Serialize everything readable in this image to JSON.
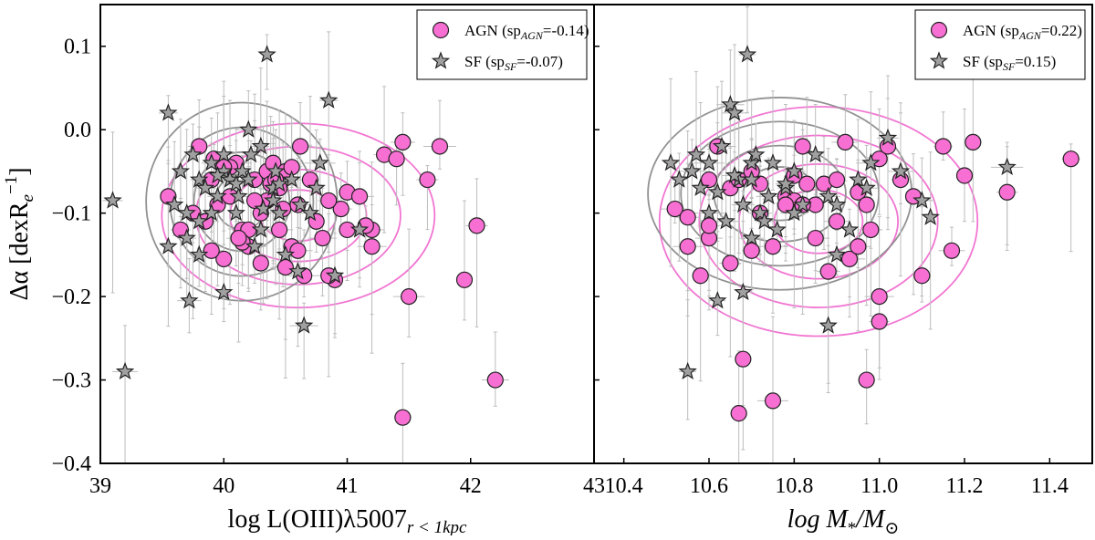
{
  "chart_data": [
    {
      "type": "scatter",
      "xlabel": "log L(OIII)λ5007",
      "xlabel_sub": "r < 1kpc",
      "ylabel": "Δα [dexR",
      "ylabel_sub": "e",
      "ylabel_sup": "−1",
      "ylabel_close": "]",
      "xlim": [
        39,
        43
      ],
      "ylim": [
        -0.4,
        0.15
      ],
      "xticks": [
        "39",
        "40",
        "41",
        "42",
        "43"
      ],
      "yticks": [
        "−0.4",
        "−0.3",
        "−0.2",
        "−0.1",
        "0.0",
        "0.1"
      ],
      "ytick_values": [
        -0.4,
        -0.3,
        -0.2,
        -0.1,
        0.0,
        0.1
      ],
      "xtick_values": [
        39,
        40,
        41,
        42,
        43
      ],
      "grid": false,
      "legend_position": "top-right",
      "series": [
        {
          "name": "AGN",
          "legend": {
            "prefix": "AGN (sp",
            "sub": "AGN",
            "suffix": "=-0.14)"
          },
          "marker": "circle",
          "color": "#f76fd2",
          "x": [
            39.55,
            39.65,
            39.8,
            39.85,
            39.9,
            39.95,
            40.0,
            40.05,
            40.1,
            40.15,
            40.2,
            40.25,
            40.3,
            40.35,
            40.4,
            40.45,
            40.5,
            40.55,
            40.6,
            40.62,
            40.7,
            40.8,
            40.9,
            41.0,
            41.1,
            41.2,
            41.3,
            41.4,
            41.45,
            41.5,
            41.65,
            41.75,
            42.05,
            42.2,
            41.95,
            41.2,
            40.85,
            40.75,
            41.15,
            40.35,
            40.2,
            40.55,
            40.45,
            40.3,
            40.15,
            40.05,
            39.92,
            40.38,
            40.48,
            40.6,
            41.0,
            40.95,
            40.85,
            40.25,
            40.12,
            40.42,
            40.5,
            39.9,
            39.75,
            40.0,
            40.65,
            41.45
          ],
          "y": [
            -0.08,
            -0.12,
            -0.02,
            -0.11,
            -0.06,
            -0.09,
            -0.155,
            -0.08,
            -0.04,
            -0.12,
            -0.14,
            -0.06,
            -0.16,
            -0.05,
            -0.04,
            -0.07,
            -0.05,
            -0.14,
            -0.09,
            -0.02,
            -0.06,
            -0.13,
            -0.18,
            -0.075,
            -0.08,
            -0.14,
            -0.03,
            -0.035,
            -0.015,
            -0.2,
            -0.06,
            -0.02,
            -0.115,
            -0.3,
            -0.18,
            -0.12,
            -0.175,
            -0.11,
            -0.115,
            -0.085,
            -0.12,
            -0.045,
            -0.12,
            -0.1,
            -0.135,
            -0.045,
            -0.035,
            -0.065,
            -0.095,
            -0.145,
            -0.12,
            -0.095,
            -0.085,
            -0.085,
            -0.13,
            -0.06,
            -0.165,
            -0.145,
            -0.1,
            -0.045,
            -0.175,
            -0.345
          ]
        },
        {
          "name": "SF",
          "legend": {
            "prefix": "SF (sp",
            "sub": "SF",
            "suffix": "=-0.07)"
          },
          "marker": "star",
          "color": "#a0a0a0",
          "x": [
            39.1,
            39.2,
            39.55,
            39.55,
            39.6,
            39.65,
            39.7,
            39.72,
            39.75,
            39.8,
            39.8,
            39.85,
            39.9,
            39.95,
            40.0,
            40.0,
            40.05,
            40.1,
            40.12,
            40.15,
            40.2,
            40.25,
            40.3,
            40.32,
            40.35,
            40.4,
            40.42,
            40.45,
            40.5,
            40.55,
            40.6,
            40.62,
            40.65,
            40.7,
            40.75,
            40.78,
            40.85,
            40.9,
            41.1,
            39.9,
            40.2,
            40.0,
            40.3,
            39.8,
            40.1,
            40.4,
            39.7,
            40.22,
            40.45,
            39.95
          ],
          "y": [
            -0.085,
            -0.29,
            0.02,
            -0.14,
            -0.09,
            -0.05,
            -0.1,
            -0.205,
            -0.03,
            -0.06,
            -0.15,
            -0.07,
            -0.04,
            -0.08,
            -0.195,
            -0.05,
            -0.06,
            -0.1,
            -0.08,
            -0.05,
            0.0,
            -0.14,
            -0.02,
            -0.095,
            0.09,
            -0.07,
            -0.05,
            -0.1,
            -0.15,
            -0.06,
            -0.17,
            -0.09,
            -0.235,
            -0.1,
            -0.07,
            -0.04,
            0.035,
            -0.175,
            -0.12,
            -0.1,
            -0.06,
            -0.03,
            -0.12,
            -0.11,
            -0.065,
            -0.085,
            -0.13,
            -0.03,
            -0.065,
            -0.055
          ]
        }
      ]
    },
    {
      "type": "scatter",
      "xlabel": "log M",
      "xlabel_sub": "*",
      "xlabel_mid": "/M",
      "xlabel_sub2": "⊙",
      "xlim": [
        10.33,
        11.5
      ],
      "ylim": [
        -0.4,
        0.15
      ],
      "xticks": [
        "10.4",
        "10.6",
        "10.8",
        "11.0",
        "11.2",
        "11.4"
      ],
      "xtick_values": [
        10.4,
        10.6,
        10.8,
        11.0,
        11.2,
        11.4
      ],
      "grid": false,
      "legend_position": "top-right",
      "series": [
        {
          "name": "AGN",
          "legend": {
            "prefix": "AGN (sp",
            "sub": "AGN",
            "suffix": "=0.22)"
          },
          "marker": "circle",
          "color": "#f76fd2",
          "x": [
            10.52,
            10.55,
            10.58,
            10.6,
            10.62,
            10.65,
            10.67,
            10.7,
            10.72,
            10.75,
            10.78,
            10.8,
            10.82,
            10.85,
            10.87,
            10.9,
            10.92,
            10.95,
            10.97,
            11.0,
            11.02,
            11.05,
            11.1,
            11.15,
            11.2,
            11.3,
            11.45,
            10.68,
            10.75,
            10.97,
            11.0,
            10.6,
            10.65,
            10.72,
            10.8,
            10.85,
            10.88,
            10.93,
            10.98,
            11.08,
            11.17,
            11.22,
            10.78,
            10.83,
            10.6,
            10.7,
            10.9,
            10.95,
            10.55,
            10.67,
            11.0,
            10.82
          ],
          "y": [
            -0.095,
            -0.105,
            -0.175,
            -0.06,
            -0.02,
            -0.07,
            -0.06,
            -0.05,
            -0.065,
            -0.14,
            -0.08,
            -0.085,
            -0.02,
            -0.13,
            -0.065,
            -0.11,
            -0.015,
            -0.075,
            -0.09,
            -0.035,
            -0.02,
            -0.06,
            -0.175,
            -0.02,
            -0.055,
            -0.075,
            -0.035,
            -0.275,
            -0.325,
            -0.3,
            -0.2,
            -0.13,
            -0.16,
            -0.1,
            -0.055,
            -0.09,
            -0.17,
            -0.155,
            -0.12,
            -0.08,
            -0.145,
            -0.015,
            -0.09,
            -0.065,
            -0.115,
            -0.145,
            -0.06,
            -0.14,
            -0.14,
            -0.34,
            -0.23,
            -0.09
          ]
        },
        {
          "name": "SF",
          "legend": {
            "prefix": "SF (sp",
            "sub": "SF",
            "suffix": "=0.15)"
          },
          "marker": "star",
          "color": "#a0a0a0",
          "x": [
            10.51,
            10.53,
            10.55,
            10.56,
            10.57,
            10.6,
            10.62,
            10.63,
            10.65,
            10.66,
            10.67,
            10.68,
            10.69,
            10.7,
            10.71,
            10.72,
            10.74,
            10.76,
            10.78,
            10.8,
            10.82,
            10.85,
            10.88,
            10.9,
            10.95,
            10.98,
            11.02,
            11.05,
            11.1,
            11.12,
            11.3,
            10.58,
            10.64,
            10.7,
            10.75,
            10.8,
            10.88,
            10.93,
            10.66,
            10.68,
            10.73,
            10.78,
            10.62,
            10.9,
            10.97,
            10.6,
            10.7
          ],
          "y": [
            -0.04,
            -0.06,
            -0.29,
            -0.05,
            -0.03,
            -0.1,
            -0.205,
            -0.02,
            0.03,
            0.02,
            -0.06,
            -0.195,
            0.09,
            -0.04,
            -0.03,
            -0.1,
            -0.08,
            -0.12,
            -0.07,
            -0.05,
            -0.09,
            -0.03,
            -0.235,
            -0.15,
            -0.06,
            -0.04,
            -0.01,
            -0.05,
            -0.085,
            -0.105,
            -0.045,
            -0.07,
            -0.11,
            -0.06,
            -0.04,
            -0.1,
            -0.08,
            -0.12,
            -0.055,
            -0.09,
            -0.11,
            -0.065,
            -0.075,
            -0.09,
            -0.07,
            -0.04,
            -0.13
          ]
        }
      ]
    }
  ]
}
